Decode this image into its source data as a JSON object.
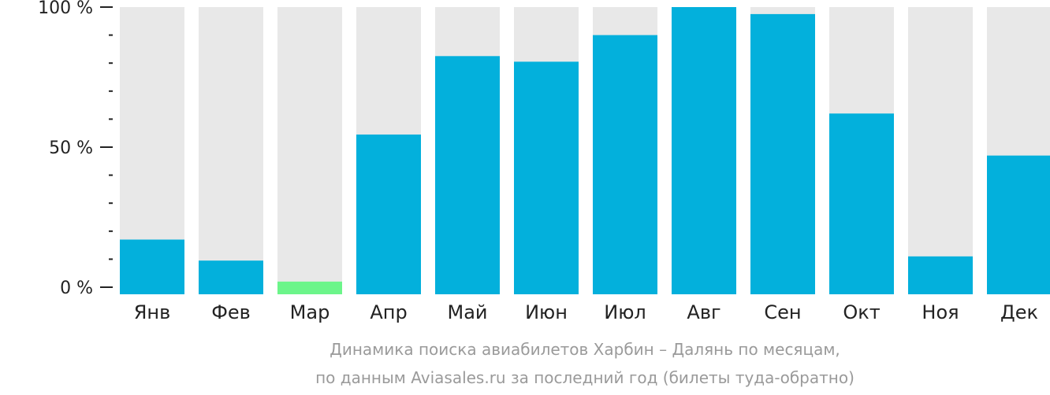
{
  "chart_data": {
    "type": "bar",
    "categories": [
      "Янв",
      "Фев",
      "Мар",
      "Апр",
      "Май",
      "Июн",
      "Июл",
      "Авг",
      "Сен",
      "Окт",
      "Ноя",
      "Дек"
    ],
    "values": [
      17,
      9.5,
      2,
      54.5,
      82.5,
      80.5,
      90,
      100,
      97.5,
      62,
      11,
      47
    ],
    "ylim": [
      0,
      100
    ],
    "y_ticks": [
      {
        "value": 0,
        "label": "0 %"
      },
      {
        "value": 50,
        "label": "50 %"
      },
      {
        "value": 100,
        "label": "100 %"
      }
    ],
    "y_minor_step": 10,
    "highlight_index": 2,
    "colors": {
      "bar": "#03b0dc",
      "highlight": "#6cf58a",
      "track": "#e8e8e8",
      "axis": "#222222"
    },
    "caption_line1": "Динамика поиска авиабилетов Харбин – Далянь по месяцам,",
    "caption_line2": "по данным Aviasales.ru за последний год (билеты туда-обратно)",
    "grid": false,
    "legend": "none"
  }
}
